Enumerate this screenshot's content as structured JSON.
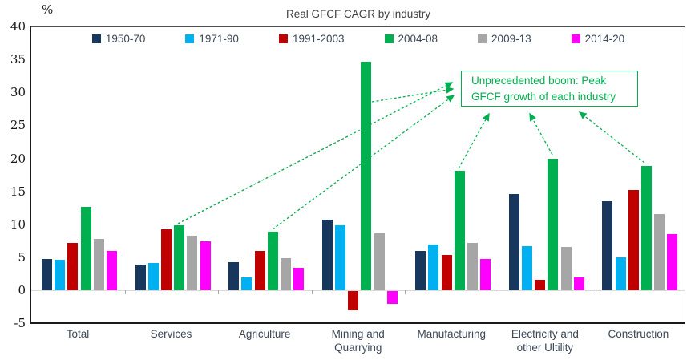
{
  "chart": {
    "title": "Real GFCF CAGR by industry",
    "percent_label": "%"
  },
  "chart_data": {
    "type": "bar",
    "title": "Real GFCF CAGR by industry",
    "xlabel": "",
    "ylabel": "%",
    "ylim": [
      -5,
      40
    ],
    "ytick_step": 5,
    "grid": false,
    "legend_position": "top-inside",
    "categories": [
      "Total",
      "Services",
      "Agriculture",
      "Mining and\nQuarrying",
      "Manufacturing",
      "Electricity and\nother Ultility",
      "Construction"
    ],
    "series": [
      {
        "name": "1950-70",
        "color": "#17375d",
        "values": [
          4.8,
          3.9,
          4.2,
          10.7,
          6.0,
          14.6,
          13.5
        ]
      },
      {
        "name": "1971-90",
        "color": "#00b0f0",
        "values": [
          4.6,
          4.1,
          1.9,
          9.9,
          6.9,
          6.7,
          5.0
        ]
      },
      {
        "name": "1991-2003",
        "color": "#c00000",
        "values": [
          7.2,
          9.2,
          6.0,
          -2.9,
          5.4,
          1.6,
          15.2
        ]
      },
      {
        "name": "2004-08",
        "color": "#00b050",
        "values": [
          12.6,
          9.8,
          8.9,
          34.7,
          18.1,
          20.0,
          18.9
        ]
      },
      {
        "name": "2009-13",
        "color": "#a6a6a6",
        "values": [
          7.8,
          8.3,
          4.9,
          8.6,
          7.2,
          6.6,
          11.6
        ]
      },
      {
        "name": "2014-20",
        "color": "#ff00ff",
        "values": [
          6.0,
          7.4,
          3.4,
          -1.9,
          4.8,
          1.9,
          8.5
        ]
      }
    ],
    "annotation": {
      "text": "Unprecedented boom: Peak GFCF growth of each industry",
      "line1": "Unprecedented boom: Peak",
      "line2": "GFCF growth of each industry",
      "color": "#00b050"
    }
  }
}
